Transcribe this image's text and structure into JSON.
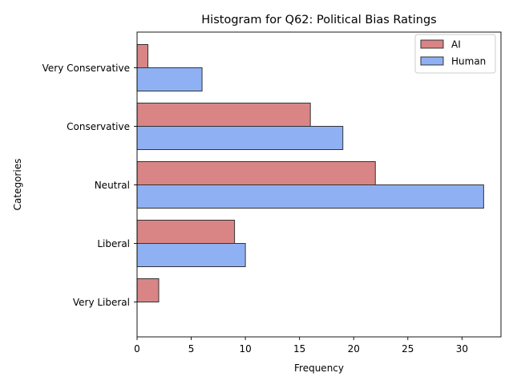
{
  "chart_data": {
    "type": "bar",
    "orientation": "horizontal",
    "title": "Histogram for Q62: Political Bias Ratings",
    "xlabel": "Frequency",
    "ylabel": "Categories",
    "categories": [
      "Very Conservative",
      "Conservative",
      "Neutral",
      "Liberal",
      "Very Liberal"
    ],
    "series": [
      {
        "name": "AI",
        "values": [
          1,
          16,
          22,
          9,
          2
        ],
        "color": "#d98585"
      },
      {
        "name": "Human",
        "values": [
          6,
          19,
          32,
          10,
          0
        ],
        "color": "#8fb1f4"
      }
    ],
    "xlim": [
      0,
      33.6
    ],
    "xticks": [
      0,
      5,
      10,
      15,
      20,
      25,
      30
    ],
    "grid": false,
    "legend_position": "top-right",
    "edge_color": "#333333"
  }
}
